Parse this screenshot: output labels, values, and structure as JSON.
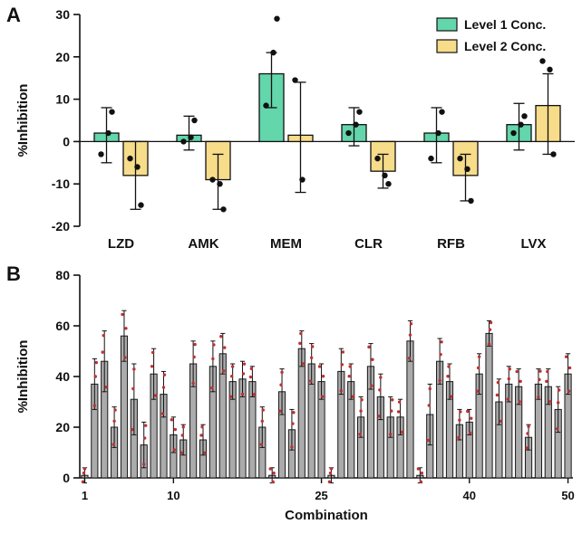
{
  "figure": {
    "panel_a_label": "A",
    "panel_b_label": "B"
  },
  "chart_data": [
    {
      "type": "bar",
      "panel": "A",
      "title": "",
      "xlabel": "",
      "ylabel": "%Inhibition",
      "ylim": [
        -20,
        30
      ],
      "yticks": [
        -20,
        -10,
        0,
        10,
        20,
        30
      ],
      "categories": [
        "LZD",
        "AMK",
        "MEM",
        "CLR",
        "RFB",
        "LVX"
      ],
      "legend_position": "top-right",
      "series": [
        {
          "name": "Level 1 Conc.",
          "color": "#63d6ac",
          "values": [
            2,
            1.5,
            16,
            4,
            2,
            4
          ],
          "err_low": [
            -5,
            -2,
            8,
            -1,
            -5,
            -2
          ],
          "err_high": [
            8,
            6,
            21,
            8,
            8,
            9
          ],
          "points": [
            [
              -3,
              2,
              7
            ],
            [
              0,
              1,
              5
            ],
            [
              8.5,
              21,
              29
            ],
            [
              2,
              4,
              7
            ],
            [
              -4,
              2,
              7
            ],
            [
              2,
              4,
              6
            ]
          ]
        },
        {
          "name": "Level 2 Conc.",
          "color": "#f7dc8a",
          "values": [
            -8,
            -9,
            1.5,
            -7,
            -8,
            8.5
          ],
          "err_low": [
            -16,
            -16,
            -12,
            -11,
            -14,
            -3
          ],
          "err_high": [
            0,
            -3,
            14,
            -3,
            -3,
            16
          ],
          "points": [
            [
              -4,
              -6,
              -15
            ],
            [
              -9,
              -10,
              -16
            ],
            [
              14.5,
              -9
            ],
            [
              -4,
              -8,
              -10
            ],
            [
              -4,
              -6.5,
              -14
            ],
            [
              19,
              17,
              -3
            ]
          ]
        }
      ]
    },
    {
      "type": "bar",
      "panel": "B",
      "title": "",
      "xlabel": "Combination",
      "ylabel": "%Inhibition",
      "ylim": [
        0,
        80
      ],
      "yticks": [
        0,
        20,
        40,
        60,
        80
      ],
      "xticks": [
        1,
        10,
        25,
        40,
        50
      ],
      "bar_color": "#ababab",
      "bar_edge_color": "#1a1a1a",
      "point_color": "#c03030",
      "x_range": [
        1,
        50
      ],
      "values": [
        1,
        37,
        46,
        20,
        56,
        31,
        13,
        41,
        33,
        17,
        15,
        45,
        15,
        44,
        49,
        38,
        39,
        38,
        20,
        1,
        34,
        19,
        51,
        45,
        38,
        1,
        42,
        38,
        24,
        44,
        32,
        24,
        24,
        54,
        1,
        25,
        46,
        38,
        21,
        22,
        41,
        57,
        30,
        37,
        36,
        16,
        37,
        36,
        27,
        41
      ],
      "err": [
        3,
        10,
        12,
        8,
        10,
        14,
        9,
        10,
        9,
        7,
        6,
        9,
        6,
        10,
        8,
        7,
        7,
        6,
        8,
        3,
        9,
        8,
        7,
        8,
        7,
        3,
        9,
        7,
        8,
        9,
        9,
        8,
        7,
        8,
        3,
        12,
        9,
        7,
        6,
        5,
        8,
        5,
        9,
        7,
        7,
        5,
        6,
        7,
        9,
        8
      ]
    }
  ]
}
